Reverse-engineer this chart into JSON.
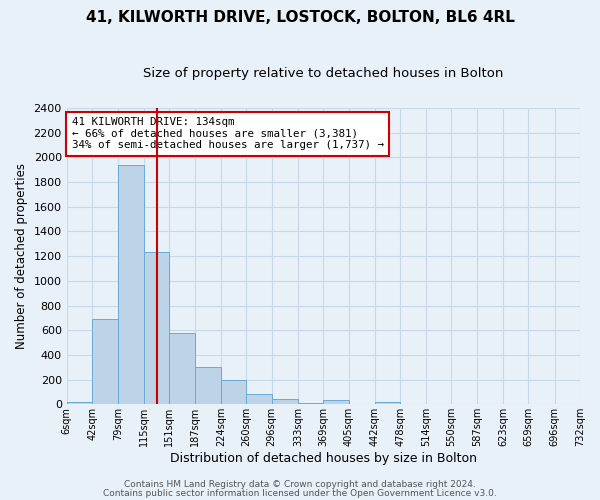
{
  "title": "41, KILWORTH DRIVE, LOSTOCK, BOLTON, BL6 4RL",
  "subtitle": "Size of property relative to detached houses in Bolton",
  "xlabel": "Distribution of detached houses by size in Bolton",
  "ylabel": "Number of detached properties",
  "footer_line1": "Contains HM Land Registry data © Crown copyright and database right 2024.",
  "footer_line2": "Contains public sector information licensed under the Open Government Licence v3.0.",
  "bin_edges": [
    6,
    42,
    79,
    115,
    151,
    187,
    224,
    260,
    296,
    333,
    369,
    405,
    442,
    478,
    514,
    550,
    587,
    623,
    659,
    696,
    732
  ],
  "bin_counts": [
    18,
    690,
    1940,
    1230,
    575,
    300,
    200,
    80,
    45,
    10,
    35,
    5,
    15,
    5,
    0,
    5,
    0,
    5,
    0,
    5
  ],
  "bar_color": "#bdd4e8",
  "bar_edge_color": "#6aaad4",
  "property_size": 134,
  "red_line_color": "#cc0000",
  "annotation_text_line1": "41 KILWORTH DRIVE: 134sqm",
  "annotation_text_line2": "← 66% of detached houses are smaller (3,381)",
  "annotation_text_line3": "34% of semi-detached houses are larger (1,737) →",
  "annotation_box_color": "#ffffff",
  "annotation_box_edge_color": "#cc0000",
  "ylim": [
    0,
    2400
  ],
  "yticks": [
    0,
    200,
    400,
    600,
    800,
    1000,
    1200,
    1400,
    1600,
    1800,
    2000,
    2200,
    2400
  ],
  "background_color": "#e8f0f8",
  "grid_color": "#c8d8e8",
  "title_fontsize": 11,
  "subtitle_fontsize": 9.5,
  "footer_fontsize": 6.5
}
